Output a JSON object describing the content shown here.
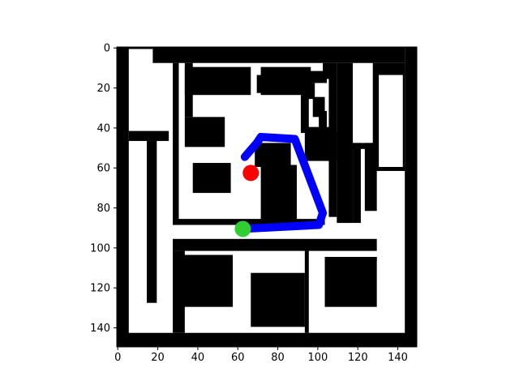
{
  "colors": {
    "wall": "#000000",
    "free": "#ffffff",
    "path": "#0000ff",
    "start": "#ff0000",
    "goal": "#32cd32"
  },
  "chart_data": {
    "type": "heatmap",
    "description_of_layer": "occupancy grid with planned path",
    "grid_size": [
      150,
      150
    ],
    "xlim": [
      0,
      150
    ],
    "ylim": [
      150,
      0
    ],
    "xticks": [
      0,
      20,
      40,
      60,
      80,
      100,
      120,
      140
    ],
    "yticks": [
      0,
      20,
      40,
      60,
      80,
      100,
      120,
      140
    ],
    "xtick_labels": [
      "0",
      "20",
      "40",
      "60",
      "80",
      "100",
      "120",
      "140"
    ],
    "ytick_labels": [
      "0",
      "20",
      "40",
      "60",
      "80",
      "100",
      "120",
      "140"
    ],
    "grid": false,
    "walls": [
      [
        0,
        0,
        6,
        150
      ],
      [
        144,
        0,
        6,
        150
      ],
      [
        0,
        143,
        150,
        7
      ],
      [
        0,
        0,
        18,
        1
      ],
      [
        18,
        0,
        126,
        8
      ],
      [
        28,
        8,
        3,
        81
      ],
      [
        28,
        86,
        76,
        3
      ],
      [
        34,
        8,
        4,
        27
      ],
      [
        34,
        10,
        33,
        14
      ],
      [
        72,
        10,
        25,
        14
      ],
      [
        70,
        14,
        3,
        9
      ],
      [
        103,
        8,
        3,
        8
      ],
      [
        95,
        12,
        10,
        6
      ],
      [
        93,
        18,
        6,
        8
      ],
      [
        92,
        24,
        4,
        19
      ],
      [
        95,
        40,
        12,
        5
      ],
      [
        98,
        25,
        6,
        10
      ],
      [
        101,
        32,
        4,
        9
      ],
      [
        106,
        8,
        4,
        77
      ],
      [
        110,
        8,
        8,
        80
      ],
      [
        128,
        8,
        16,
        6
      ],
      [
        128,
        14,
        3,
        48
      ],
      [
        128,
        60,
        16,
        2
      ],
      [
        143,
        10,
        1,
        52
      ],
      [
        118,
        48,
        4,
        40
      ],
      [
        118,
        48,
        12,
        3
      ],
      [
        124,
        48,
        6,
        34
      ],
      [
        6,
        42,
        20,
        5
      ],
      [
        15,
        47,
        5,
        81
      ],
      [
        34,
        35,
        20,
        15
      ],
      [
        38,
        58,
        19,
        15
      ],
      [
        69,
        48,
        18,
        12
      ],
      [
        72,
        59,
        18,
        28
      ],
      [
        94,
        42,
        16,
        15
      ],
      [
        28,
        96,
        102,
        6
      ],
      [
        28,
        102,
        6,
        41
      ],
      [
        31,
        104,
        27,
        26
      ],
      [
        67,
        113,
        27,
        27
      ],
      [
        94,
        102,
        2,
        41
      ],
      [
        104,
        105,
        26,
        25
      ],
      [
        118,
        105,
        12,
        2
      ]
    ],
    "path": [
      [
        64,
        55
      ],
      [
        70,
        48
      ],
      [
        72,
        45
      ],
      [
        89,
        46
      ],
      [
        103,
        83
      ],
      [
        101,
        89
      ],
      [
        62,
        91
      ]
    ],
    "start": {
      "x": 67,
      "y": 63
    },
    "goal": {
      "x": 63,
      "y": 91
    }
  }
}
